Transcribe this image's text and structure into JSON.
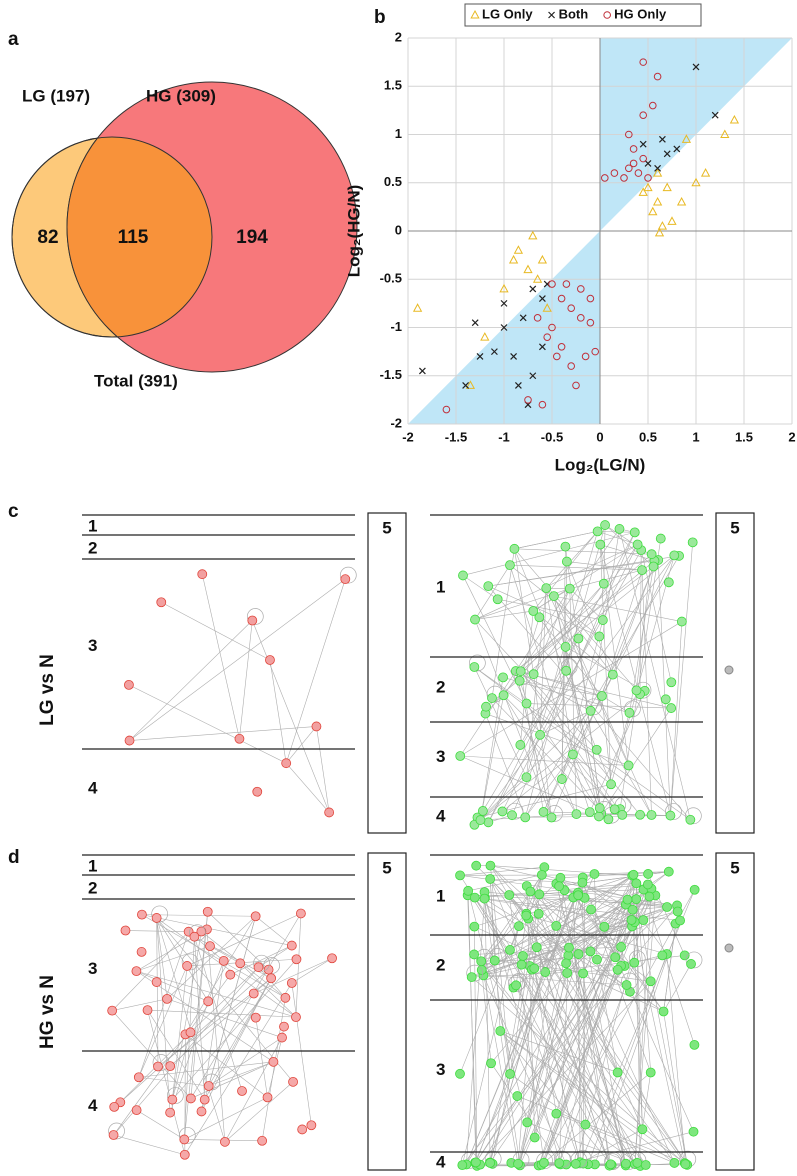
{
  "panel_labels": [
    "a",
    "b",
    "c",
    "d"
  ],
  "venn": {
    "left_label": "LG (197)",
    "right_label": "HG (309)",
    "left_only": 82,
    "both": 115,
    "right_only": 194,
    "total_label": "Total (391)",
    "left_color": "#fdc97a",
    "right_color": "#f7787b",
    "overlap_color": "#f8923a"
  },
  "chart_data": {
    "type": "scatter",
    "x_label": "Log₂(LG/N)",
    "y_label": "Log₂(HG/N)",
    "xlim": [
      -2,
      2
    ],
    "ylim": [
      -2,
      2
    ],
    "xticks": [
      -2,
      -1.5,
      -1,
      -0.5,
      0,
      0.5,
      1,
      1.5,
      2
    ],
    "yticks": [
      -2,
      -1.5,
      -1,
      -0.5,
      0,
      0.5,
      1,
      1.5,
      2
    ],
    "grid": true,
    "legend": "top",
    "shade_color": "#bfe6f7",
    "series": [
      {
        "name": "LG Only",
        "color": "#e8b923",
        "marker": "triangle",
        "x": [
          1.4,
          1.3,
          0.9,
          0.7,
          0.6,
          0.55,
          0.65,
          0.62,
          0.75,
          0.85,
          1.0,
          1.1,
          0.5,
          0.45,
          0.6,
          -0.7,
          -0.9,
          -0.75,
          -1.0,
          -0.65,
          -0.55,
          -1.9,
          -0.85,
          -1.2,
          -1.35,
          -0.6
        ],
        "y": [
          1.15,
          1.0,
          0.95,
          0.45,
          0.3,
          0.2,
          0.05,
          -0.02,
          0.1,
          0.3,
          0.5,
          0.6,
          0.45,
          0.4,
          0.6,
          -0.05,
          -0.3,
          -0.4,
          -0.6,
          -0.5,
          -0.8,
          -0.8,
          -0.2,
          -1.1,
          -1.6,
          -0.3
        ]
      },
      {
        "name": "Both",
        "color": "#222222",
        "marker": "cross",
        "x": [
          1.0,
          1.2,
          0.8,
          0.7,
          0.6,
          0.5,
          0.45,
          0.65,
          -1.85,
          -1.4,
          -1.25,
          -1.1,
          -1.0,
          -0.9,
          -0.85,
          -0.75,
          -0.7,
          -0.6,
          -0.8,
          -1.3,
          -1.0,
          -0.6,
          -0.55,
          -0.7
        ],
        "y": [
          1.7,
          1.2,
          0.85,
          0.8,
          0.65,
          0.7,
          0.9,
          0.95,
          -1.45,
          -1.6,
          -1.3,
          -1.25,
          -1.0,
          -1.3,
          -1.6,
          -1.8,
          -1.5,
          -1.2,
          -0.9,
          -0.95,
          -0.75,
          -0.7,
          -0.55,
          -0.6
        ]
      },
      {
        "name": "HG Only",
        "color": "#c0303a",
        "marker": "circle",
        "x": [
          0.45,
          0.6,
          0.55,
          0.45,
          0.3,
          0.35,
          0.4,
          0.3,
          0.25,
          0.05,
          0.15,
          0.5,
          0.45,
          0.35,
          -0.5,
          -0.4,
          -0.3,
          -0.2,
          -0.1,
          -0.5,
          -0.55,
          -0.45,
          -0.3,
          -0.25,
          -0.6,
          -0.75,
          -0.4,
          -0.15,
          -0.05,
          -0.65,
          -0.2,
          -0.35,
          -1.6,
          -0.1
        ],
        "y": [
          1.75,
          1.6,
          1.3,
          1.2,
          1.0,
          0.7,
          0.6,
          0.65,
          0.55,
          0.55,
          0.6,
          0.55,
          0.75,
          0.85,
          -0.55,
          -0.7,
          -0.8,
          -0.9,
          -0.7,
          -1.0,
          -1.1,
          -1.3,
          -1.4,
          -1.6,
          -1.8,
          -1.75,
          -1.2,
          -1.3,
          -1.25,
          -0.9,
          -0.6,
          -0.55,
          -1.85,
          -0.95
        ]
      }
    ]
  },
  "networks": [
    {
      "row_label": "LG vs N",
      "panels": [
        {
          "layers": [
            "1",
            "2",
            "3",
            "4"
          ],
          "side": "5",
          "color": "#e0443a"
        },
        {
          "layers": [
            "1",
            "2",
            "3",
            "4"
          ],
          "side": "5",
          "color": "#3ddc3d"
        }
      ]
    },
    {
      "row_label": "HG vs N",
      "panels": [
        {
          "layers": [
            "1",
            "2",
            "3",
            "4"
          ],
          "side": "5",
          "color": "#e0443a"
        },
        {
          "layers": [
            "1",
            "2",
            "3",
            "4"
          ],
          "side": "5",
          "color": "#3ddc3d"
        }
      ]
    }
  ]
}
